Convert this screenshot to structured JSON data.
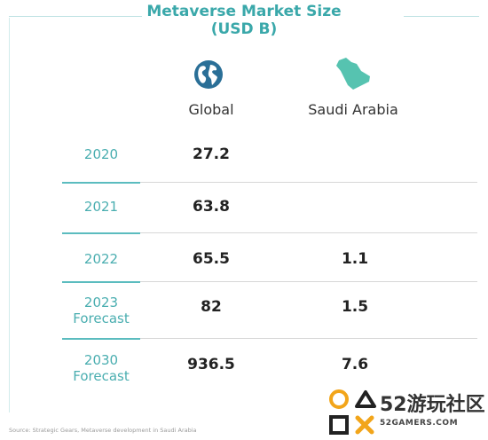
{
  "title_line1": "Metaverse Market Size",
  "title_line2": "(USD B)",
  "colors": {
    "accent": "#3aa8aa",
    "year_text": "#4aaeb0",
    "globe": "#2a6f97",
    "map": "#56c3b0"
  },
  "icons": {
    "global": "globe-icon",
    "saudi": "saudi-map-icon"
  },
  "chart_data": {
    "type": "table",
    "columns": [
      "Global",
      "Saudi Arabia"
    ],
    "rows": [
      {
        "year": "2020",
        "sub": "",
        "global": "27.2",
        "saudi": ""
      },
      {
        "year": "2021",
        "sub": "",
        "global": "63.8",
        "saudi": ""
      },
      {
        "year": "2022",
        "sub": "",
        "global": "65.5",
        "saudi": "1.1"
      },
      {
        "year": "2023",
        "sub": "Forecast",
        "global": "82",
        "saudi": "1.5"
      },
      {
        "year": "2030",
        "sub": "Forecast",
        "global": "936.5",
        "saudi": "7.6"
      }
    ]
  },
  "source": "Source: Strategic Gears, Metaverse development in Saudi Arabia",
  "watermark": {
    "big": "52游玩社区",
    "small": "52GAMERS.COM"
  }
}
